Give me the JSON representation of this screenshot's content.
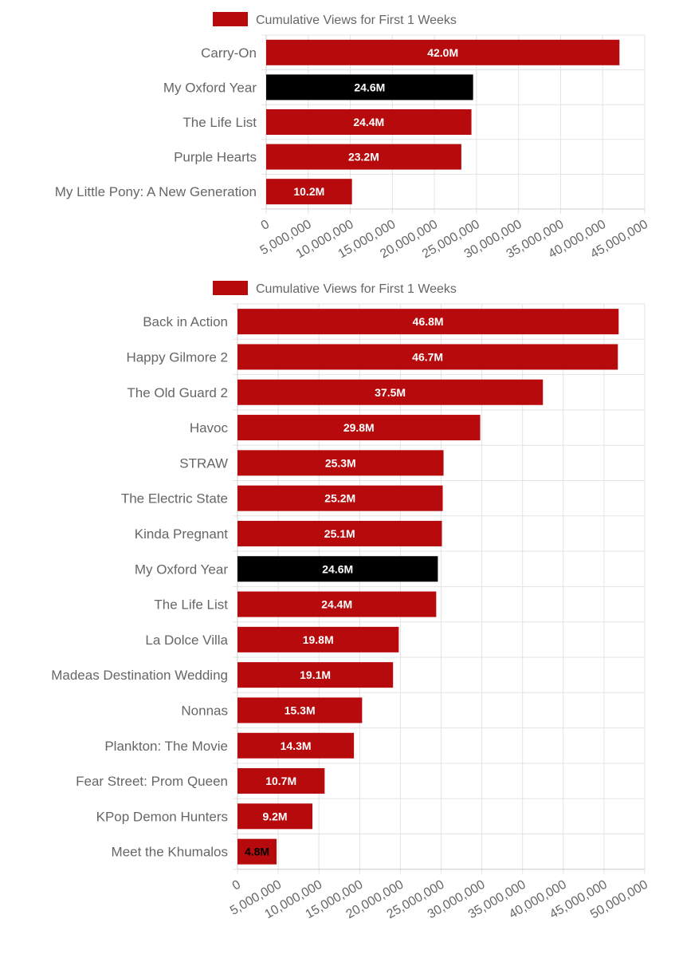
{
  "colors": {
    "bar": "#b70a0c",
    "highlight": "#000000",
    "grid": "#e3e3e3",
    "text": "#666666"
  },
  "chart_data": [
    {
      "type": "bar",
      "orientation": "horizontal",
      "legend": "Cumulative Views for First 1 Weeks",
      "legend_position": "top-center",
      "categories": [
        "Carry-On",
        "My Oxford Year",
        "The Life List",
        "Purple Hearts",
        "My Little Pony: A New Generation"
      ],
      "values": [
        42000000,
        24600000,
        24400000,
        23200000,
        10200000
      ],
      "data_labels": [
        "42.0M",
        "24.6M",
        "24.4M",
        "23.2M",
        "10.2M"
      ],
      "highlight": "My Oxford Year",
      "xlim": [
        0,
        45000000
      ],
      "x_ticks": [
        0,
        5000000,
        10000000,
        15000000,
        20000000,
        25000000,
        30000000,
        35000000,
        40000000,
        45000000
      ],
      "x_tick_labels": [
        "0",
        "5,000,000",
        "10,000,000",
        "15,000,000",
        "20,000,000",
        "25,000,000",
        "30,000,000",
        "35,000,000",
        "40,000,000",
        "45,000,000"
      ]
    },
    {
      "type": "bar",
      "orientation": "horizontal",
      "legend": "Cumulative Views for First 1 Weeks",
      "legend_position": "top-center",
      "categories": [
        "Back in Action",
        "Happy Gilmore 2",
        "The Old Guard 2",
        "Havoc",
        "STRAW",
        "The Electric State",
        "Kinda Pregnant",
        "My Oxford Year",
        "The Life List",
        "La Dolce Villa",
        "Madeas Destination Wedding",
        "Nonnas",
        "Plankton: The Movie",
        "Fear Street: Prom Queen",
        "KPop Demon Hunters",
        "Meet the Khumalos"
      ],
      "values": [
        46800000,
        46700000,
        37500000,
        29800000,
        25300000,
        25200000,
        25100000,
        24600000,
        24400000,
        19800000,
        19100000,
        15300000,
        14300000,
        10700000,
        9200000,
        4800000
      ],
      "data_labels": [
        "46.8M",
        "46.7M",
        "37.5M",
        "29.8M",
        "25.3M",
        "25.2M",
        "25.1M",
        "24.6M",
        "24.4M",
        "19.8M",
        "19.1M",
        "15.3M",
        "14.3M",
        "10.7M",
        "9.2M",
        "4.8M"
      ],
      "highlight": "My Oxford Year",
      "xlim": [
        0,
        50000000
      ],
      "x_ticks": [
        0,
        5000000,
        10000000,
        15000000,
        20000000,
        25000000,
        30000000,
        35000000,
        40000000,
        45000000,
        50000000
      ],
      "x_tick_labels": [
        "0",
        "5,000,000",
        "10,000,000",
        "15,000,000",
        "20,000,000",
        "25,000,000",
        "30,000,000",
        "35,000,000",
        "40,000,000",
        "45,000,000",
        "50,000,000"
      ]
    }
  ]
}
